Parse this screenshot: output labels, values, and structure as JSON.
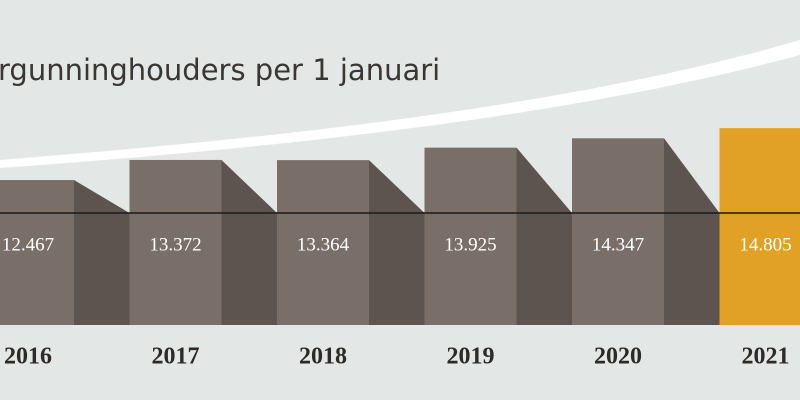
{
  "chart_data": {
    "type": "bar",
    "title": "rgunninghouders per 1 januari",
    "categories": [
      "2016",
      "2017",
      "2018",
      "2019",
      "2020",
      "2021"
    ],
    "values": [
      12467,
      13372,
      13364,
      13925,
      14347,
      14805
    ],
    "value_labels": [
      "12.467",
      "13.372",
      "13.364",
      "13.925",
      "14.347",
      "14.805"
    ],
    "colors": [
      "#7a6f68",
      "#7a6f68",
      "#7a6f68",
      "#7a6f68",
      "#7a6f68",
      "#e1a127"
    ]
  }
}
